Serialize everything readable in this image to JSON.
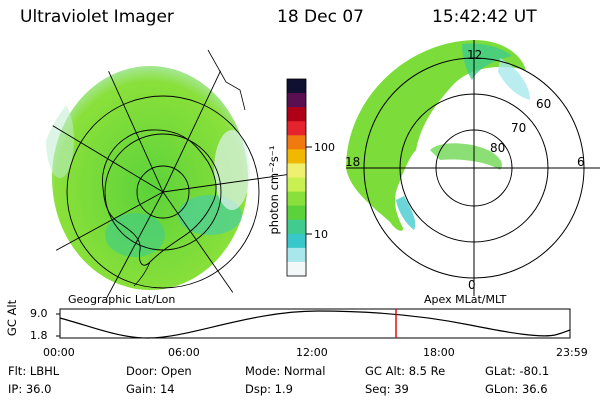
{
  "header": {
    "title": "Ultraviolet Imager",
    "date": "18 Dec 07",
    "time": "15:42:42 UT"
  },
  "geo_map": {
    "caption": "Geographic Lat/Lon"
  },
  "colorbar": {
    "unit_label": "photon cm⁻²s⁻¹",
    "tick_labels": [
      "100",
      "10"
    ],
    "colors": [
      "#101030",
      "#5a1050",
      "#b00018",
      "#e4232c",
      "#f07a10",
      "#f0b800",
      "#f0f070",
      "#c8f050",
      "#8ae03a",
      "#5bd23a",
      "#40cc8c",
      "#38c8cc",
      "#a8e8ec",
      "#f2f8f8"
    ]
  },
  "polar_map": {
    "caption": "Apex MLat/MLT",
    "mlt_labels": [
      "12",
      "18",
      "6",
      "0"
    ],
    "mlat_labels": [
      "60",
      "70",
      "80"
    ]
  },
  "orbit": {
    "y_axis_label": "GC Alt",
    "y_ticks": [
      "9.0",
      "1.8"
    ],
    "x_ticks": [
      "00:00",
      "06:00",
      "12:00",
      "18:00",
      "23:59"
    ]
  },
  "info": {
    "filter": "Flt: LBHL",
    "ip": "IP: 36.0",
    "door": "Door: Open",
    "gain": "Gain: 14",
    "mode": "Mode: Normal",
    "dsp": "Dsp:    1.9",
    "gc_alt": "GC Alt: 8.5 Re",
    "seq": "Seq: 39",
    "glat": "GLat:  -80.1",
    "glon": "GLon:   36.6"
  }
}
